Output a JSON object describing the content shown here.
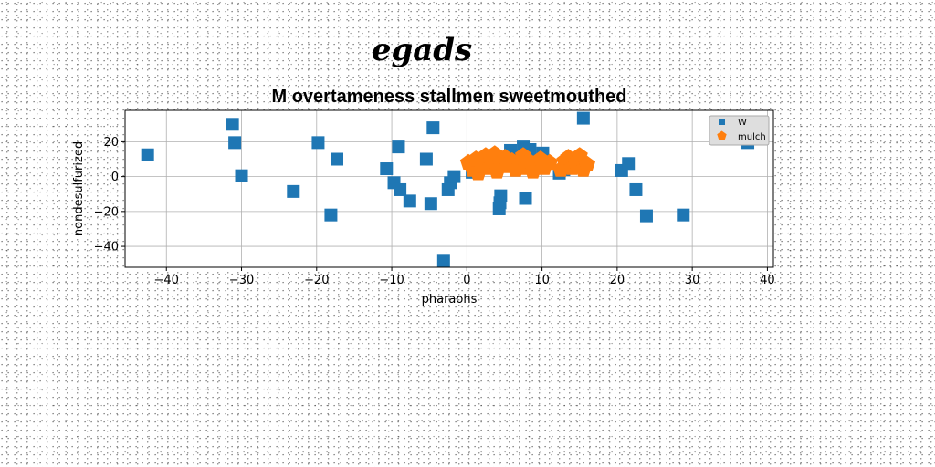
{
  "suptitle": "egads",
  "chart_data": {
    "type": "scatter",
    "title": "M overtameness stallmen sweetmouthed",
    "xlabel": "pharaohs",
    "ylabel": "nondesulfurized",
    "xlim": [
      -45.5,
      40.8
    ],
    "ylim": [
      -52,
      38
    ],
    "xticks": [
      -40,
      -30,
      -20,
      -10,
      0,
      10,
      20,
      30,
      40
    ],
    "yticks": [
      -40,
      -20,
      0,
      20
    ],
    "grid": true,
    "legend_position": "top-right",
    "series": [
      {
        "name": "W",
        "marker": "square",
        "color": "#1f77b4",
        "x": [
          -42.5,
          -31.2,
          -30.9,
          -30,
          -23.1,
          -19.8,
          -18.1,
          -17.3,
          -10.7,
          -9.7,
          -9.1,
          -8.9,
          -7.6,
          -5.4,
          -4.8,
          -4.5,
          -3.1,
          -2.5,
          -2.2,
          -1.7,
          0.7,
          4.3,
          4.4,
          4.5,
          5.8,
          6.8,
          7.5,
          7.8,
          8.4,
          9.9,
          10.1,
          12.3,
          12.9,
          15.5,
          20.6,
          21.5,
          22.5,
          23.9,
          28.8,
          37.4
        ],
        "y": [
          12.5,
          30,
          19.5,
          0.5,
          -8.5,
          19.5,
          -22,
          10,
          4.5,
          -3.5,
          17,
          -7.5,
          -14,
          10,
          -15.5,
          28,
          -48.5,
          -7.5,
          -3.5,
          0,
          2.5,
          -18.5,
          -15,
          -11,
          15,
          12,
          17,
          -12.5,
          15.5,
          9,
          13.5,
          2,
          4,
          33.5,
          3.5,
          7.5,
          -7.5,
          -22.5,
          -22,
          19.5
        ]
      },
      {
        "name": "mulch",
        "marker": "pentagon",
        "color": "#ff7f0e",
        "x": [
          0.2,
          0.8,
          1.2,
          1.5,
          2,
          2.5,
          3,
          3.3,
          3.7,
          4,
          4.5,
          5.1,
          5.5,
          6,
          6.5,
          7,
          7.5,
          7.8,
          8.2,
          8.8,
          9.3,
          9.8,
          10.3,
          11,
          12.5,
          13,
          13.5,
          14,
          14.5,
          15,
          15.5,
          16
        ],
        "y": [
          8,
          4,
          10,
          2,
          6,
          12,
          5,
          9,
          13,
          3,
          8,
          11,
          6,
          9,
          4,
          7,
          12,
          5,
          9,
          3,
          7,
          10,
          5,
          8,
          4,
          9,
          11,
          5,
          8,
          12,
          4,
          7
        ]
      }
    ]
  }
}
